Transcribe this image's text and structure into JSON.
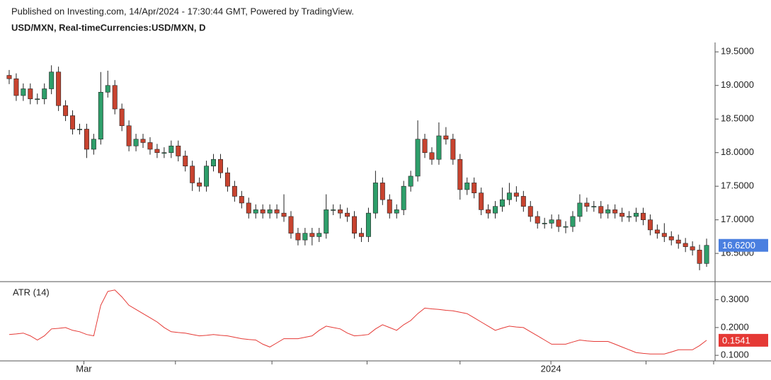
{
  "header": {
    "published": "Published on Investing.com, 14/Apr/2024 - 17:30:44 GMT, Powered by TradingView.",
    "symbol": "USD/MXN, Real-timeCurrencies:USD/MXN, D"
  },
  "chart_data": [
    {
      "type": "candlestick",
      "up_color": "#2e9e6a",
      "down_color": "#c8432f",
      "open": [
        19.15,
        19.1,
        18.85,
        18.95,
        18.8,
        18.8,
        18.95,
        19.2,
        18.7,
        18.55,
        18.35,
        18.35,
        18.05,
        18.2,
        18.9,
        19.0,
        18.65,
        18.4,
        18.1,
        18.2,
        18.15,
        18.05,
        18.0,
        18.0,
        18.1,
        17.95,
        17.8,
        17.55,
        17.5,
        17.8,
        17.9,
        17.7,
        17.5,
        17.35,
        17.25,
        17.1,
        17.15,
        17.1,
        17.15,
        17.1,
        17.05,
        16.8,
        16.7,
        16.8,
        16.75,
        16.8,
        17.15,
        17.15,
        17.1,
        17.05,
        16.8,
        16.75,
        17.1,
        17.55,
        17.3,
        17.1,
        17.15,
        17.5,
        17.65,
        18.2,
        18.0,
        17.9,
        18.25,
        18.2,
        17.9,
        17.45,
        17.55,
        17.4,
        17.15,
        17.1,
        17.2,
        17.3,
        17.4,
        17.35,
        17.2,
        17.05,
        16.95,
        16.95,
        17.0,
        16.9,
        16.9,
        17.05,
        17.25,
        17.2,
        17.2,
        17.1,
        17.15,
        17.1,
        17.05,
        17.05,
        17.1,
        17.0,
        16.85,
        16.8,
        16.75,
        16.7,
        16.65,
        16.6,
        16.55,
        16.35
      ],
      "high": [
        19.23,
        19.18,
        19.03,
        19.03,
        18.88,
        19.03,
        19.3,
        19.28,
        18.78,
        18.63,
        18.43,
        18.43,
        18.28,
        19.2,
        19.22,
        19.08,
        18.73,
        18.48,
        18.28,
        18.28,
        18.23,
        18.13,
        18.08,
        18.18,
        18.18,
        18.03,
        17.88,
        17.63,
        17.88,
        17.98,
        17.98,
        17.78,
        17.58,
        17.43,
        17.33,
        17.23,
        17.23,
        17.23,
        17.23,
        17.38,
        17.13,
        16.88,
        16.88,
        16.88,
        16.88,
        17.38,
        17.23,
        17.23,
        17.18,
        17.13,
        16.88,
        17.18,
        17.73,
        17.63,
        17.38,
        17.23,
        17.58,
        17.73,
        18.48,
        18.28,
        18.08,
        18.45,
        18.38,
        18.28,
        17.98,
        17.63,
        17.63,
        17.48,
        17.23,
        17.28,
        17.48,
        17.55,
        17.5,
        17.43,
        17.28,
        17.13,
        17.03,
        17.08,
        17.08,
        16.98,
        17.13,
        17.38,
        17.33,
        17.28,
        17.28,
        17.23,
        17.23,
        17.18,
        17.13,
        17.18,
        17.18,
        17.08,
        16.93,
        16.95,
        16.83,
        16.78,
        16.73,
        16.68,
        16.63,
        16.72
      ],
      "low": [
        19.02,
        18.77,
        18.77,
        18.72,
        18.72,
        18.72,
        18.87,
        18.62,
        18.47,
        18.27,
        18.27,
        17.92,
        17.97,
        18.12,
        18.82,
        18.57,
        18.32,
        18.02,
        18.02,
        18.07,
        17.97,
        17.92,
        17.92,
        17.92,
        17.87,
        17.72,
        17.43,
        17.42,
        17.42,
        17.72,
        17.62,
        17.42,
        17.27,
        17.17,
        17.02,
        17.02,
        17.02,
        17.02,
        17.02,
        16.97,
        16.72,
        16.62,
        16.62,
        16.62,
        16.67,
        16.72,
        17.07,
        17.02,
        16.97,
        16.72,
        16.67,
        16.67,
        17.02,
        17.22,
        17.02,
        17.02,
        17.07,
        17.42,
        17.57,
        17.92,
        17.82,
        17.82,
        18.12,
        17.82,
        17.3,
        17.37,
        17.32,
        17.07,
        17.02,
        17.02,
        17.12,
        17.22,
        17.27,
        17.12,
        16.97,
        16.87,
        16.87,
        16.87,
        16.82,
        16.8,
        16.82,
        16.97,
        17.12,
        17.12,
        17.02,
        17.02,
        17.02,
        16.97,
        16.97,
        16.97,
        16.92,
        16.77,
        16.72,
        16.67,
        16.62,
        16.57,
        16.52,
        16.47,
        16.25,
        16.3
      ],
      "close": [
        19.1,
        18.85,
        18.95,
        18.8,
        18.8,
        18.95,
        19.2,
        18.7,
        18.55,
        18.35,
        18.35,
        18.05,
        18.2,
        18.9,
        19.0,
        18.65,
        18.4,
        18.1,
        18.2,
        18.15,
        18.05,
        18.0,
        18.0,
        18.1,
        17.95,
        17.8,
        17.55,
        17.5,
        17.8,
        17.9,
        17.7,
        17.5,
        17.35,
        17.25,
        17.1,
        17.15,
        17.1,
        17.15,
        17.1,
        17.05,
        16.8,
        16.7,
        16.8,
        16.75,
        16.8,
        17.15,
        17.15,
        17.1,
        17.05,
        16.8,
        16.75,
        17.1,
        17.55,
        17.3,
        17.1,
        17.15,
        17.5,
        17.65,
        18.2,
        18.0,
        17.9,
        18.25,
        18.2,
        17.9,
        17.45,
        17.55,
        17.4,
        17.15,
        17.1,
        17.2,
        17.3,
        17.4,
        17.35,
        17.2,
        17.05,
        16.95,
        16.95,
        17.0,
        16.9,
        16.9,
        17.05,
        17.25,
        17.2,
        17.2,
        17.1,
        17.15,
        17.1,
        17.05,
        17.05,
        17.1,
        17.0,
        16.85,
        16.8,
        16.75,
        16.7,
        16.65,
        16.6,
        16.55,
        16.35,
        16.62
      ],
      "last_value_label": "16.6200",
      "last_color": "#4a7fe0",
      "xlim": [
        -0.5,
        99.5
      ],
      "xticks": [
        {
          "value": 10.6,
          "label": "Mar"
        },
        {
          "value": 23.6,
          "label": null
        },
        {
          "value": 37.3,
          "label": null
        },
        {
          "value": 50.8,
          "label": null
        },
        {
          "value": 64,
          "label": null
        },
        {
          "value": 76.9,
          "label": "2024"
        },
        {
          "value": 90.4,
          "label": null
        },
        {
          "value": 100,
          "label": null
        }
      ],
      "ylim": [
        16.08,
        19.64
      ],
      "yticks": [
        {
          "value": 16.5,
          "label": "16.5000"
        },
        {
          "value": 17,
          "label": "17.0000"
        },
        {
          "value": 17.5,
          "label": "17.5000"
        },
        {
          "value": 18,
          "label": "18.0000"
        },
        {
          "value": 18.5,
          "label": "18.5000"
        },
        {
          "value": 19,
          "label": "19.0000"
        },
        {
          "value": 19.5,
          "label": "19.5000"
        }
      ]
    },
    {
      "type": "line",
      "title": "ATR (14)",
      "color": "#e53935",
      "values": [
        0.175,
        0.177,
        0.18,
        0.17,
        0.155,
        0.17,
        0.195,
        0.197,
        0.2,
        0.19,
        0.185,
        0.175,
        0.17,
        0.28,
        0.33,
        0.335,
        0.31,
        0.28,
        0.265,
        0.25,
        0.235,
        0.22,
        0.2,
        0.185,
        0.182,
        0.18,
        0.175,
        0.17,
        0.172,
        0.175,
        0.172,
        0.17,
        0.165,
        0.16,
        0.157,
        0.155,
        0.14,
        0.13,
        0.145,
        0.16,
        0.16,
        0.16,
        0.165,
        0.17,
        0.19,
        0.205,
        0.2,
        0.195,
        0.18,
        0.17,
        0.172,
        0.175,
        0.195,
        0.21,
        0.2,
        0.19,
        0.21,
        0.225,
        0.25,
        0.27,
        0.267,
        0.265,
        0.262,
        0.26,
        0.255,
        0.25,
        0.235,
        0.22,
        0.205,
        0.19,
        0.198,
        0.205,
        0.202,
        0.2,
        0.185,
        0.17,
        0.155,
        0.14,
        0.14,
        0.14,
        0.148,
        0.155,
        0.152,
        0.15,
        0.15,
        0.15,
        0.14,
        0.13,
        0.12,
        0.11,
        0.107,
        0.105,
        0.105,
        0.105,
        0.112,
        0.12,
        0.12,
        0.12,
        0.135,
        0.1541
      ],
      "last_value_label": "0.1541",
      "ylim": [
        0.08,
        0.36
      ],
      "yticks": [
        {
          "value": 0.1,
          "label": "0.1000"
        },
        {
          "value": 0.2,
          "label": "0.2000"
        },
        {
          "value": 0.3,
          "label": "0.3000"
        }
      ]
    }
  ]
}
